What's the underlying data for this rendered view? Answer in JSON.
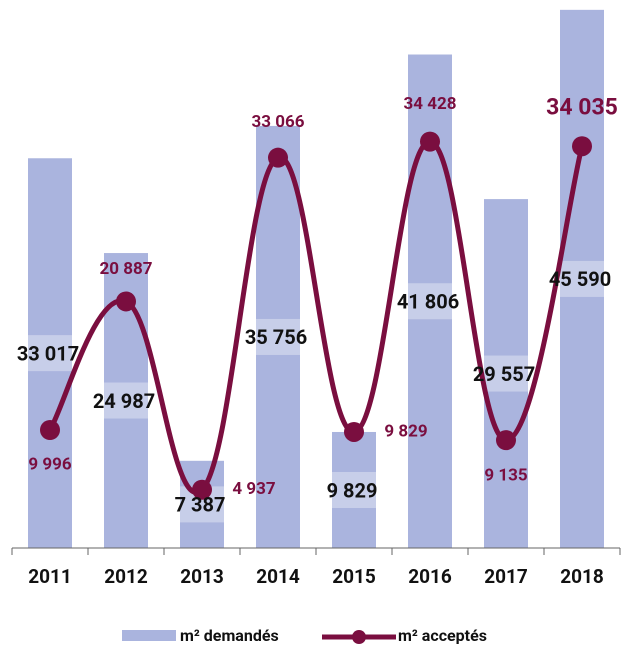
{
  "chart_data": {
    "type": "bar-line",
    "categories": [
      "2011",
      "2012",
      "2013",
      "2014",
      "2015",
      "2016",
      "2017",
      "2018"
    ],
    "series": [
      {
        "name": "m² demandés",
        "type": "bar",
        "color": "#aab4de",
        "values": [
          33017,
          24987,
          7387,
          35756,
          9829,
          41806,
          29557,
          45590
        ],
        "value_labels": [
          "33 017",
          "24 987",
          "7 387",
          "35 756",
          "9 829",
          "41 806",
          "29 557",
          "45 590"
        ]
      },
      {
        "name": "m² acceptés",
        "type": "line",
        "color": "#7a0e3f",
        "values": [
          9996,
          20887,
          4937,
          33066,
          9829,
          34428,
          9135,
          34035
        ],
        "value_labels": [
          "9 996",
          "20 887",
          "4 937",
          "33 066",
          "9 829",
          "34 428",
          "9 135",
          "34 035"
        ]
      }
    ],
    "ylim": [
      0,
      46000
    ],
    "legend": "bottom"
  }
}
